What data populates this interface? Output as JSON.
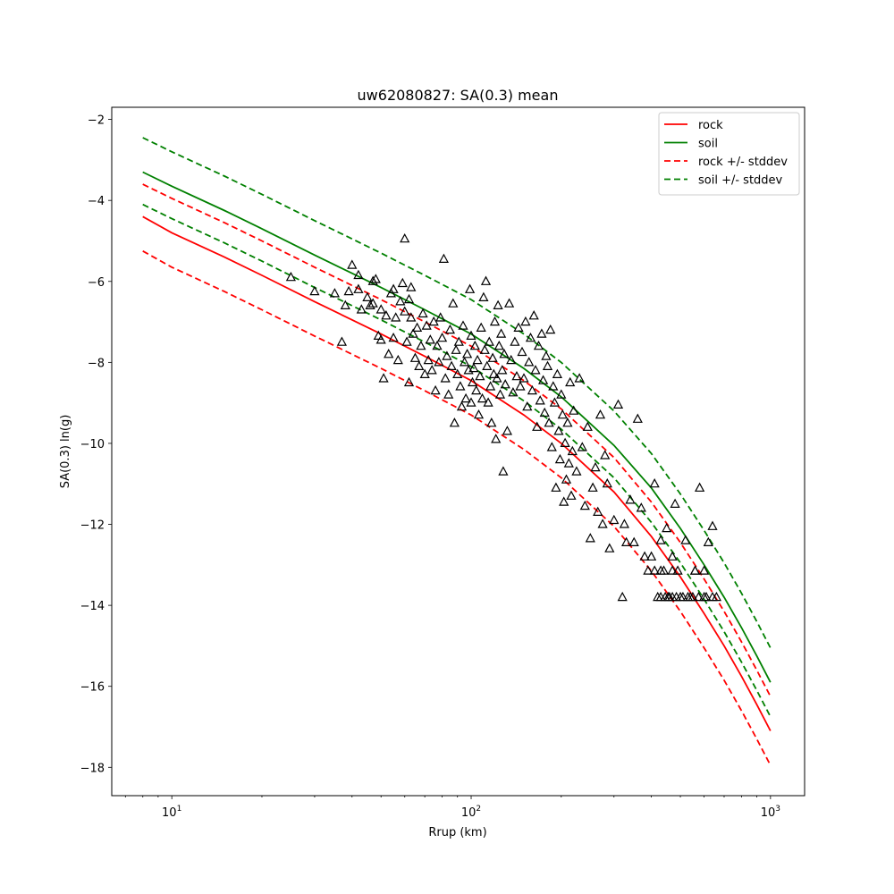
{
  "chart_data": {
    "type": "scatter",
    "title": "uw62080827: SA(0.3) mean",
    "xlabel": "Rrup (km)",
    "ylabel": "SA(0.3) ln(g)",
    "xscale": "log",
    "xlim": [
      6.3,
      1300
    ],
    "ylim": [
      -18.7,
      -1.7
    ],
    "x_ticks": [
      {
        "value": 10,
        "base": "10",
        "exp": "1"
      },
      {
        "value": 100,
        "base": "10",
        "exp": "2"
      },
      {
        "value": 1000,
        "base": "10",
        "exp": "3"
      }
    ],
    "y_ticks": [
      {
        "value": -2,
        "label": "−2"
      },
      {
        "value": -4,
        "label": "−4"
      },
      {
        "value": -6,
        "label": "−6"
      },
      {
        "value": -8,
        "label": "−8"
      },
      {
        "value": -10,
        "label": "−10"
      },
      {
        "value": -12,
        "label": "−12"
      },
      {
        "value": -14,
        "label": "−14"
      },
      {
        "value": -16,
        "label": "−16"
      },
      {
        "value": -18,
        "label": "−18"
      }
    ],
    "grid": false,
    "legend_position": "top-right",
    "curve_x": [
      8,
      10,
      15,
      20,
      30,
      40,
      50,
      70,
      100,
      150,
      200,
      300,
      400,
      500,
      600,
      700,
      800,
      900,
      1000
    ],
    "series": [
      {
        "name": "rock",
        "color": "#ff0000",
        "style": "solid",
        "y": [
          -4.4,
          -4.8,
          -5.4,
          -5.85,
          -6.5,
          -6.95,
          -7.3,
          -7.85,
          -8.45,
          -9.3,
          -10.0,
          -11.2,
          -12.3,
          -13.3,
          -14.2,
          -15.0,
          -15.75,
          -16.45,
          -17.1
        ]
      },
      {
        "name": "soil",
        "color": "#008000",
        "style": "solid",
        "y": [
          -3.3,
          -3.65,
          -4.25,
          -4.7,
          -5.35,
          -5.8,
          -6.15,
          -6.7,
          -7.3,
          -8.15,
          -8.85,
          -10.05,
          -11.1,
          -12.1,
          -13.0,
          -13.8,
          -14.55,
          -15.25,
          -15.9
        ]
      },
      {
        "name": "rock +/- stddev",
        "color": "#ff0000",
        "style": "dashed",
        "y": [
          -3.6,
          -3.95,
          -4.55,
          -5.0,
          -5.65,
          -6.1,
          -6.45,
          -7.0,
          -7.6,
          -8.45,
          -9.15,
          -10.35,
          -11.45,
          -12.45,
          -13.35,
          -14.15,
          -14.9,
          -15.6,
          -16.25
        ],
        "y_lower": [
          -5.25,
          -5.65,
          -6.25,
          -6.7,
          -7.35,
          -7.8,
          -8.15,
          -8.7,
          -9.3,
          -10.15,
          -10.85,
          -12.05,
          -13.15,
          -14.15,
          -15.05,
          -15.85,
          -16.6,
          -17.3,
          -17.95
        ]
      },
      {
        "name": "soil +/- stddev",
        "color": "#008000",
        "style": "dashed",
        "y": [
          -2.45,
          -2.8,
          -3.4,
          -3.85,
          -4.5,
          -4.95,
          -5.3,
          -5.85,
          -6.45,
          -7.3,
          -8.0,
          -9.2,
          -10.25,
          -11.25,
          -12.15,
          -12.95,
          -13.7,
          -14.4,
          -15.05
        ],
        "y_lower": [
          -4.1,
          -4.45,
          -5.05,
          -5.5,
          -6.15,
          -6.6,
          -6.95,
          -7.5,
          -8.1,
          -8.95,
          -9.65,
          -10.85,
          -11.95,
          -12.95,
          -13.85,
          -14.65,
          -15.4,
          -16.1,
          -16.75
        ]
      }
    ],
    "observations": {
      "marker": "triangle",
      "color": "#000000",
      "points": [
        [
          25,
          -5.9
        ],
        [
          30,
          -6.25
        ],
        [
          35,
          -6.3
        ],
        [
          37,
          -7.5
        ],
        [
          38,
          -6.6
        ],
        [
          39,
          -6.25
        ],
        [
          40,
          -5.6
        ],
        [
          42,
          -5.85
        ],
        [
          42,
          -6.2
        ],
        [
          43,
          -6.7
        ],
        [
          45,
          -6.4
        ],
        [
          46,
          -6.6
        ],
        [
          47,
          -6.0
        ],
        [
          47,
          -6.55
        ],
        [
          48,
          -5.95
        ],
        [
          49,
          -7.35
        ],
        [
          50,
          -6.7
        ],
        [
          50,
          -7.45
        ],
        [
          51,
          -8.4
        ],
        [
          52,
          -6.85
        ],
        [
          53,
          -7.8
        ],
        [
          54,
          -6.3
        ],
        [
          55,
          -6.2
        ],
        [
          55,
          -7.4
        ],
        [
          56,
          -6.9
        ],
        [
          57,
          -7.95
        ],
        [
          58,
          -6.5
        ],
        [
          59,
          -6.05
        ],
        [
          60,
          -4.95
        ],
        [
          60,
          -6.75
        ],
        [
          61,
          -7.5
        ],
        [
          62,
          -6.45
        ],
        [
          62,
          -8.5
        ],
        [
          63,
          -6.15
        ],
        [
          63,
          -6.9
        ],
        [
          64,
          -7.3
        ],
        [
          65,
          -7.9
        ],
        [
          66,
          -7.15
        ],
        [
          67,
          -8.1
        ],
        [
          68,
          -7.6
        ],
        [
          69,
          -6.8
        ],
        [
          70,
          -8.3
        ],
        [
          71,
          -7.1
        ],
        [
          72,
          -7.95
        ],
        [
          73,
          -7.45
        ],
        [
          74,
          -8.2
        ],
        [
          75,
          -7.0
        ],
        [
          76,
          -8.7
        ],
        [
          77,
          -7.6
        ],
        [
          78,
          -8.0
        ],
        [
          79,
          -6.9
        ],
        [
          80,
          -7.4
        ],
        [
          81,
          -5.45
        ],
        [
          82,
          -8.4
        ],
        [
          83,
          -7.85
        ],
        [
          84,
          -8.8
        ],
        [
          85,
          -7.2
        ],
        [
          86,
          -8.1
        ],
        [
          87,
          -6.55
        ],
        [
          88,
          -9.5
        ],
        [
          89,
          -7.7
        ],
        [
          90,
          -8.3
        ],
        [
          91,
          -7.5
        ],
        [
          92,
          -8.6
        ],
        [
          93,
          -9.1
        ],
        [
          94,
          -7.1
        ],
        [
          95,
          -8.0
        ],
        [
          96,
          -8.9
        ],
        [
          97,
          -7.8
        ],
        [
          98,
          -8.2
        ],
        [
          99,
          -6.2
        ],
        [
          100,
          -7.35
        ],
        [
          100,
          -9.0
        ],
        [
          101,
          -8.5
        ],
        [
          102,
          -8.15
        ],
        [
          103,
          -7.6
        ],
        [
          104,
          -8.7
        ],
        [
          105,
          -7.95
        ],
        [
          106,
          -9.3
        ],
        [
          107,
          -8.35
        ],
        [
          108,
          -7.15
        ],
        [
          109,
          -8.9
        ],
        [
          110,
          -6.4
        ],
        [
          111,
          -7.7
        ],
        [
          112,
          -6.0
        ],
        [
          113,
          -8.1
        ],
        [
          114,
          -9.0
        ],
        [
          115,
          -7.5
        ],
        [
          116,
          -8.6
        ],
        [
          117,
          -9.5
        ],
        [
          118,
          -7.9
        ],
        [
          119,
          -8.3
        ],
        [
          120,
          -7.0
        ],
        [
          121,
          -9.9
        ],
        [
          122,
          -8.4
        ],
        [
          123,
          -6.6
        ],
        [
          124,
          -7.6
        ],
        [
          125,
          -8.8
        ],
        [
          126,
          -7.3
        ],
        [
          127,
          -8.2
        ],
        [
          128,
          -10.7
        ],
        [
          129,
          -7.8
        ],
        [
          130,
          -8.55
        ],
        [
          132,
          -9.7
        ],
        [
          134,
          -6.55
        ],
        [
          136,
          -7.95
        ],
        [
          138,
          -8.75
        ],
        [
          140,
          -7.5
        ],
        [
          142,
          -8.35
        ],
        [
          144,
          -7.15
        ],
        [
          146,
          -8.6
        ],
        [
          148,
          -7.75
        ],
        [
          150,
          -8.4
        ],
        [
          152,
          -7.0
        ],
        [
          154,
          -9.1
        ],
        [
          156,
          -8.0
        ],
        [
          158,
          -7.4
        ],
        [
          160,
          -8.7
        ],
        [
          162,
          -6.85
        ],
        [
          164,
          -8.2
        ],
        [
          166,
          -9.6
        ],
        [
          168,
          -7.6
        ],
        [
          170,
          -8.95
        ],
        [
          172,
          -7.3
        ],
        [
          174,
          -8.45
        ],
        [
          176,
          -9.25
        ],
        [
          178,
          -7.85
        ],
        [
          180,
          -8.1
        ],
        [
          182,
          -9.5
        ],
        [
          184,
          -7.2
        ],
        [
          186,
          -10.1
        ],
        [
          188,
          -8.6
        ],
        [
          190,
          -9.0
        ],
        [
          192,
          -11.1
        ],
        [
          194,
          -8.3
        ],
        [
          196,
          -9.7
        ],
        [
          198,
          -10.4
        ],
        [
          200,
          -8.8
        ],
        [
          202,
          -9.3
        ],
        [
          204,
          -11.45
        ],
        [
          206,
          -10.0
        ],
        [
          208,
          -10.9
        ],
        [
          210,
          -9.5
        ],
        [
          212,
          -10.5
        ],
        [
          214,
          -8.5
        ],
        [
          216,
          -11.3
        ],
        [
          218,
          -10.2
        ],
        [
          220,
          -9.2
        ],
        [
          225,
          -10.7
        ],
        [
          230,
          -8.4
        ],
        [
          235,
          -10.1
        ],
        [
          240,
          -11.55
        ],
        [
          245,
          -9.6
        ],
        [
          250,
          -12.35
        ],
        [
          255,
          -11.1
        ],
        [
          260,
          -10.6
        ],
        [
          265,
          -11.7
        ],
        [
          270,
          -9.3
        ],
        [
          275,
          -12.0
        ],
        [
          280,
          -10.3
        ],
        [
          285,
          -11.0
        ],
        [
          290,
          -12.6
        ],
        [
          300,
          -11.9
        ],
        [
          310,
          -9.05
        ],
        [
          320,
          -13.8
        ],
        [
          325,
          -12.0
        ],
        [
          330,
          -12.45
        ],
        [
          340,
          -11.4
        ],
        [
          350,
          -12.45
        ],
        [
          360,
          -9.4
        ],
        [
          370,
          -11.6
        ],
        [
          380,
          -12.8
        ],
        [
          390,
          -13.15
        ],
        [
          400,
          -12.8
        ],
        [
          410,
          -11.0
        ],
        [
          420,
          -13.8
        ],
        [
          430,
          -12.4
        ],
        [
          440,
          -13.15
        ],
        [
          450,
          -12.1
        ],
        [
          460,
          -13.8
        ],
        [
          470,
          -12.8
        ],
        [
          480,
          -11.5
        ],
        [
          490,
          -13.15
        ],
        [
          500,
          -13.8
        ],
        [
          520,
          -12.4
        ],
        [
          540,
          -13.8
        ],
        [
          560,
          -13.15
        ],
        [
          580,
          -11.1
        ],
        [
          600,
          -13.8
        ],
        [
          620,
          -12.45
        ],
        [
          640,
          -12.05
        ],
        [
          660,
          -13.8
        ],
        [
          430,
          -13.8
        ],
        [
          445,
          -13.8
        ],
        [
          455,
          -13.8
        ],
        [
          470,
          -13.8
        ],
        [
          485,
          -13.8
        ],
        [
          510,
          -13.8
        ],
        [
          530,
          -13.8
        ],
        [
          550,
          -13.8
        ],
        [
          575,
          -13.8
        ],
        [
          610,
          -13.8
        ],
        [
          640,
          -13.8
        ],
        [
          410,
          -13.15
        ],
        [
          430,
          -13.15
        ],
        [
          470,
          -13.15
        ],
        [
          560,
          -13.15
        ],
        [
          600,
          -13.15
        ]
      ]
    }
  }
}
